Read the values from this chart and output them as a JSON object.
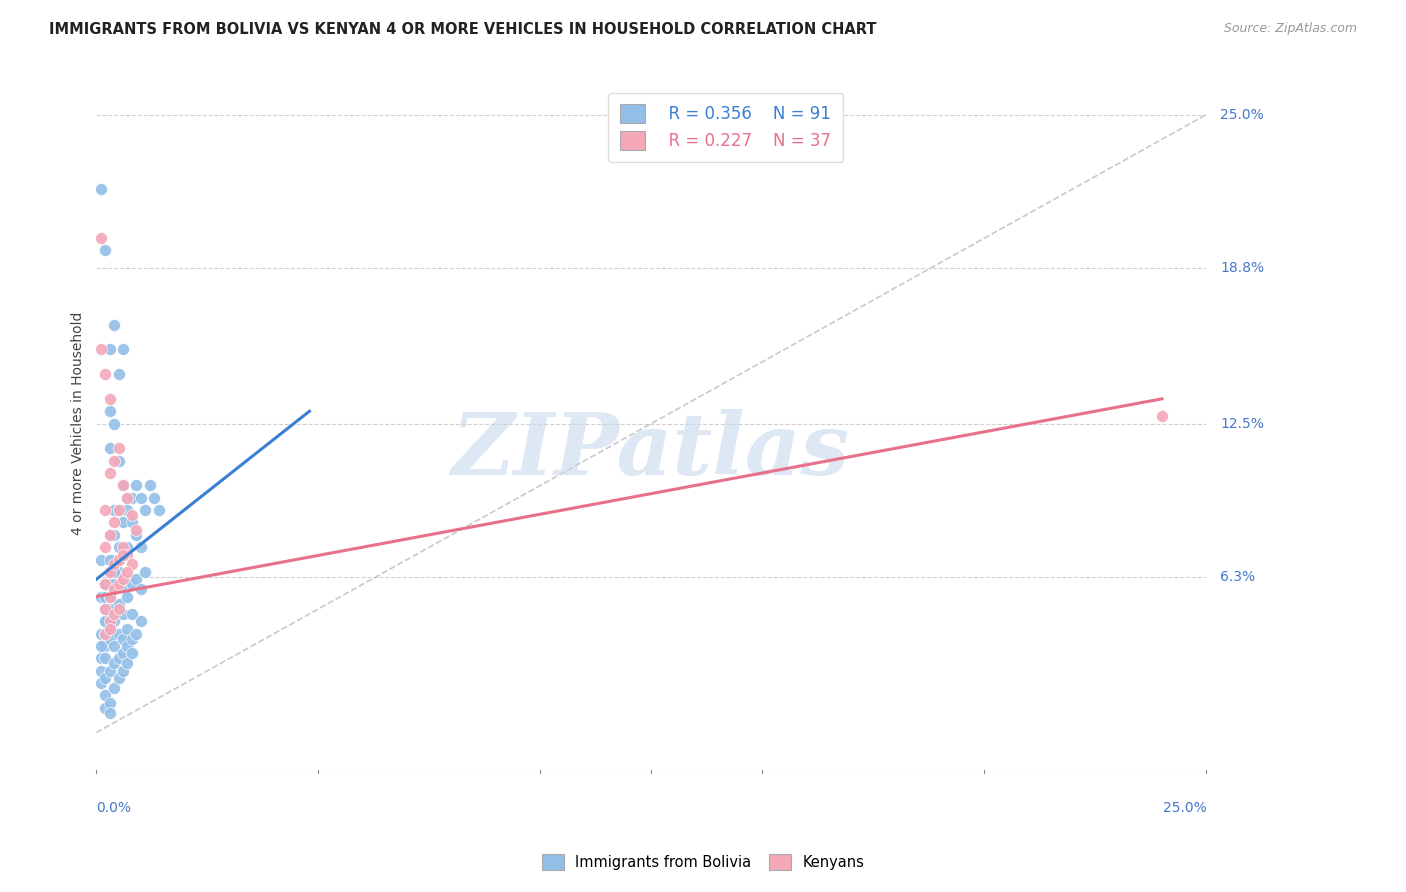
{
  "title": "IMMIGRANTS FROM BOLIVIA VS KENYAN 4 OR MORE VEHICLES IN HOUSEHOLD CORRELATION CHART",
  "source": "Source: ZipAtlas.com",
  "ylabel": "4 or more Vehicles in Household",
  "xlim": [
    0.0,
    0.25
  ],
  "ylim": [
    -0.015,
    0.265
  ],
  "ytick_labels_right": [
    "25.0%",
    "18.8%",
    "12.5%",
    "6.3%"
  ],
  "ytick_values_right": [
    0.25,
    0.188,
    0.125,
    0.063
  ],
  "legend_blue_r": "R = 0.356",
  "legend_blue_n": "N = 91",
  "legend_pink_r": "R = 0.227",
  "legend_pink_n": "N = 37",
  "legend_bottom_blue": "Immigrants from Bolivia",
  "legend_bottom_pink": "Kenyans",
  "blue_color": "#92bfe8",
  "pink_color": "#f4a8b8",
  "blue_line_color": "#3a7fd4",
  "pink_line_color": "#e8708a",
  "dashed_line_color": "#bbbbbb",
  "watermark_text": "ZIPatlas",
  "background_color": "#ffffff",
  "grid_color": "#cccccc",
  "title_color": "#222222",
  "label_color": "#4477cc",
  "blue_scatter_x": [
    0.001,
    0.001,
    0.001,
    0.001,
    0.001,
    0.002,
    0.002,
    0.002,
    0.002,
    0.002,
    0.002,
    0.002,
    0.003,
    0.003,
    0.003,
    0.003,
    0.003,
    0.003,
    0.003,
    0.003,
    0.004,
    0.004,
    0.004,
    0.004,
    0.004,
    0.004,
    0.005,
    0.005,
    0.005,
    0.005,
    0.005,
    0.006,
    0.006,
    0.006,
    0.006,
    0.007,
    0.007,
    0.007,
    0.008,
    0.008,
    0.009,
    0.009,
    0.01,
    0.01,
    0.011,
    0.012,
    0.013,
    0.014,
    0.001,
    0.001,
    0.002,
    0.002,
    0.002,
    0.003,
    0.003,
    0.003,
    0.004,
    0.004,
    0.004,
    0.005,
    0.005,
    0.006,
    0.006,
    0.007,
    0.007,
    0.008,
    0.008,
    0.009,
    0.01,
    0.01,
    0.011,
    0.001,
    0.002,
    0.003,
    0.004,
    0.005,
    0.006,
    0.007,
    0.008,
    0.009,
    0.003,
    0.004,
    0.002,
    0.002,
    0.003,
    0.003,
    0.004,
    0.005,
    0.006,
    0.007,
    0.008
  ],
  "blue_scatter_y": [
    0.22,
    0.04,
    0.03,
    0.07,
    0.055,
    0.195,
    0.06,
    0.055,
    0.05,
    0.045,
    0.04,
    0.035,
    0.155,
    0.13,
    0.115,
    0.08,
    0.065,
    0.06,
    0.055,
    0.05,
    0.165,
    0.125,
    0.09,
    0.08,
    0.07,
    0.06,
    0.145,
    0.11,
    0.09,
    0.075,
    0.065,
    0.155,
    0.1,
    0.085,
    0.06,
    0.095,
    0.09,
    0.075,
    0.095,
    0.085,
    0.1,
    0.08,
    0.095,
    0.075,
    0.09,
    0.1,
    0.095,
    0.09,
    0.035,
    0.025,
    0.045,
    0.04,
    0.03,
    0.048,
    0.042,
    0.038,
    0.05,
    0.045,
    0.035,
    0.052,
    0.04,
    0.048,
    0.038,
    0.055,
    0.042,
    0.06,
    0.048,
    0.062,
    0.058,
    0.045,
    0.065,
    0.02,
    0.022,
    0.025,
    0.028,
    0.03,
    0.032,
    0.035,
    0.038,
    0.04,
    0.07,
    0.065,
    0.01,
    0.015,
    0.012,
    0.008,
    0.018,
    0.022,
    0.025,
    0.028,
    0.032
  ],
  "pink_scatter_x": [
    0.001,
    0.001,
    0.002,
    0.002,
    0.002,
    0.003,
    0.003,
    0.003,
    0.004,
    0.004,
    0.005,
    0.005,
    0.005,
    0.006,
    0.006,
    0.007,
    0.007,
    0.008,
    0.008,
    0.009,
    0.002,
    0.003,
    0.004,
    0.005,
    0.006,
    0.002,
    0.003,
    0.004,
    0.005,
    0.006,
    0.007,
    0.003,
    0.004,
    0.005,
    0.002,
    0.003,
    0.24
  ],
  "pink_scatter_y": [
    0.2,
    0.155,
    0.145,
    0.09,
    0.075,
    0.135,
    0.105,
    0.08,
    0.11,
    0.085,
    0.115,
    0.09,
    0.07,
    0.1,
    0.075,
    0.095,
    0.072,
    0.088,
    0.068,
    0.082,
    0.06,
    0.065,
    0.068,
    0.07,
    0.072,
    0.05,
    0.055,
    0.058,
    0.06,
    0.062,
    0.065,
    0.045,
    0.048,
    0.05,
    0.04,
    0.042,
    0.128
  ],
  "blue_line_x": [
    0.0,
    0.048
  ],
  "blue_line_y": [
    0.062,
    0.13
  ],
  "pink_line_x": [
    0.0,
    0.24
  ],
  "pink_line_y": [
    0.055,
    0.135
  ],
  "diag_line_x": [
    0.0,
    0.25
  ],
  "diag_line_y": [
    0.0,
    0.25
  ]
}
